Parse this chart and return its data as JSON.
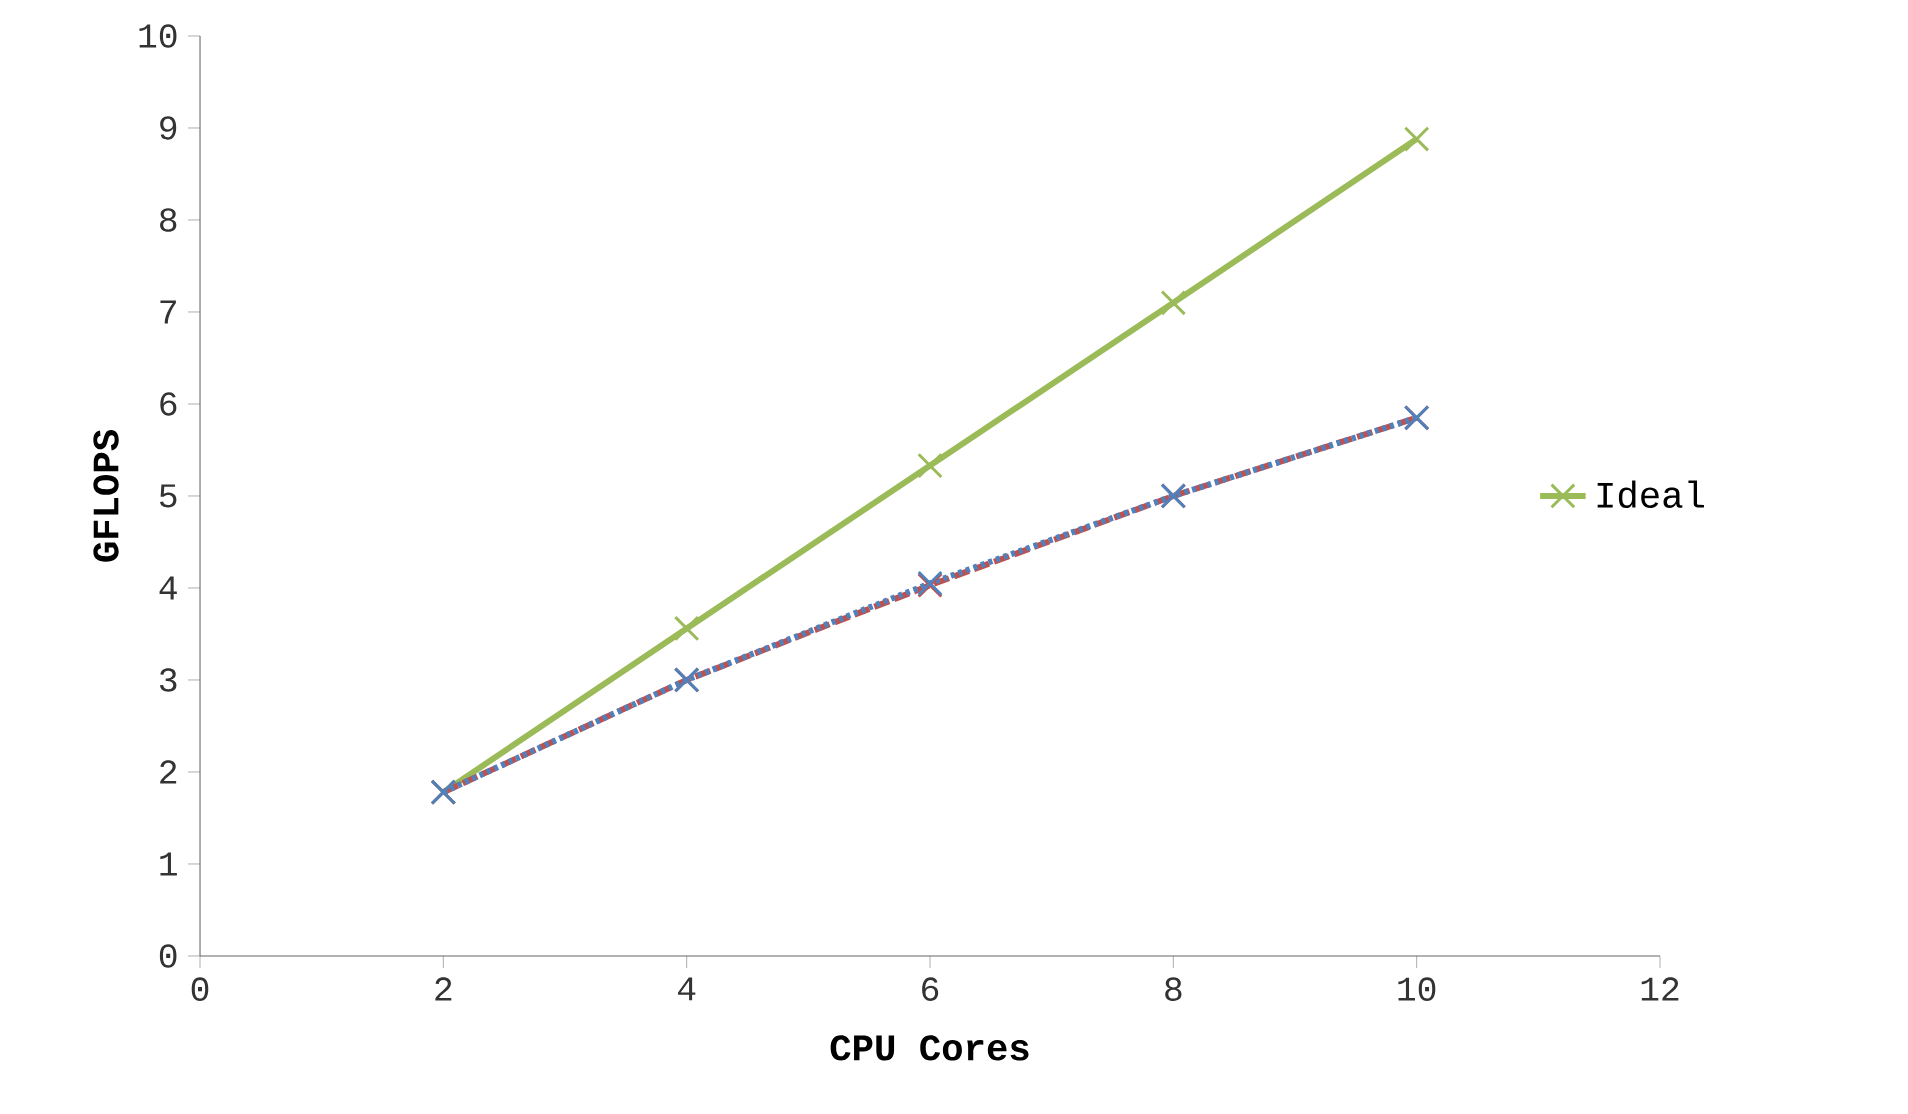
{
  "chart_data": {
    "type": "line",
    "xlabel": "CPU Cores",
    "ylabel": "GFLOPS",
    "x": [
      2,
      4,
      6,
      8,
      10
    ],
    "series": [
      {
        "color": "#4f81bd",
        "values": [
          1.78,
          3.0,
          4.05,
          5.0,
          5.85
        ],
        "marker": "cross",
        "line_style": "dotted"
      },
      {
        "color": "#c0504d",
        "values": [
          1.78,
          3.0,
          4.03,
          5.0,
          5.85
        ],
        "marker": "cross",
        "line_style": "dashed"
      },
      {
        "name": "Ideal",
        "color": "#9bbb59",
        "values": [
          1.78,
          3.56,
          5.33,
          7.1,
          8.88
        ],
        "marker": "cross",
        "line_style": "solid"
      }
    ],
    "xlim": [
      0,
      12
    ],
    "xticks": [
      0,
      2,
      4,
      6,
      8,
      10,
      12
    ],
    "ylim": [
      0,
      10
    ],
    "yticks": [
      0,
      1,
      2,
      3,
      4,
      5,
      6,
      7,
      8,
      9,
      10
    ],
    "grid": false,
    "legend": "right"
  }
}
